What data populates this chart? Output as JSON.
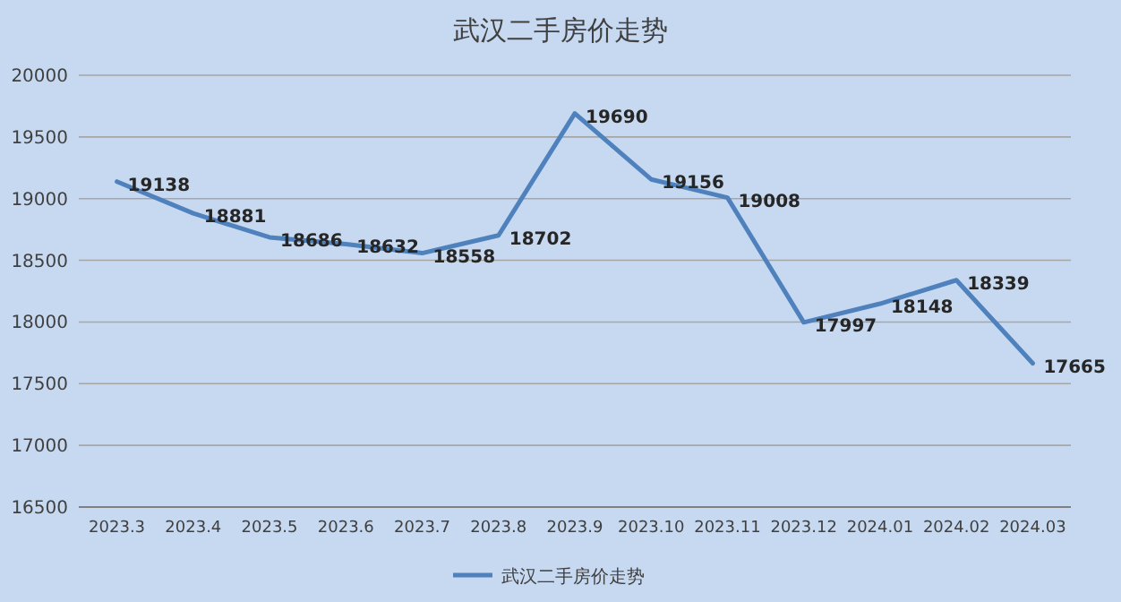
{
  "chart_data": {
    "type": "line",
    "title": "武汉二手房价走势",
    "categories": [
      "2023.3",
      "2023.4",
      "2023.5",
      "2023.6",
      "2023.7",
      "2023.8",
      "2023.9",
      "2023.10",
      "2023.11",
      "2023.12",
      "2024.01",
      "2024.02",
      "2024.03"
    ],
    "series": [
      {
        "name": "武汉二手房价走势",
        "color": "#4f81bd",
        "values": [
          19138,
          18881,
          18686,
          18632,
          18558,
          18702,
          19690,
          19156,
          19008,
          17997,
          18148,
          18339,
          17665
        ]
      }
    ],
    "ylim": [
      16500,
      20000
    ],
    "yticks": [
      16500,
      17000,
      17500,
      18000,
      18500,
      19000,
      19500,
      20000
    ],
    "grid": "y",
    "legend": "bottom",
    "data_labels": true,
    "marker": "none",
    "line_style": "solid"
  }
}
